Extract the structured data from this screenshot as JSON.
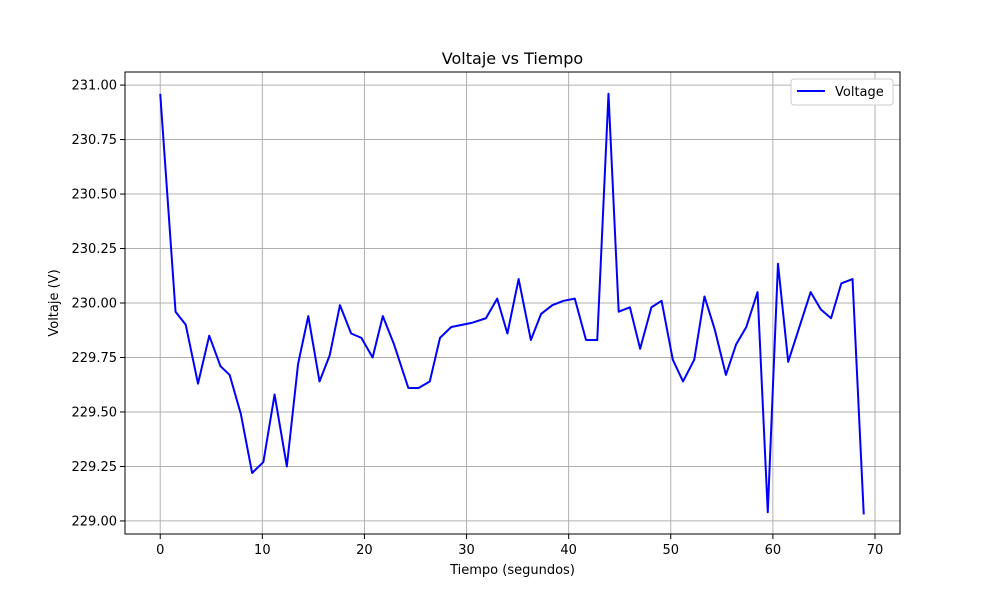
{
  "chart_data": {
    "type": "line",
    "title": "Voltaje vs Tiempo",
    "xlabel": "Tiempo (segundos)",
    "ylabel": "Voltaje (V)",
    "xlim": [
      -3.45,
      72.45
    ],
    "ylim": [
      228.94,
      231.06
    ],
    "xticks": [
      0,
      10,
      20,
      30,
      40,
      50,
      60,
      70
    ],
    "yticks": [
      229.0,
      229.25,
      229.5,
      229.75,
      230.0,
      230.25,
      230.5,
      230.75,
      231.0
    ],
    "ytick_labels": [
      "229.00",
      "229.25",
      "229.50",
      "229.75",
      "230.00",
      "230.25",
      "230.50",
      "230.75",
      "231.00"
    ],
    "grid": true,
    "legend_position": "top-right",
    "series": [
      {
        "name": "Voltage",
        "color": "#0000ff",
        "x": [
          0,
          1.5,
          2.5,
          3.7,
          4.8,
          5.9,
          6.8,
          7.9,
          9.0,
          10.1,
          11.2,
          12.4,
          13.5,
          14.5,
          15.6,
          16.6,
          17.6,
          18.7,
          19.7,
          20.8,
          21.8,
          22.9,
          24.3,
          25.3,
          26.4,
          27.4,
          28.5,
          29.6,
          30.6,
          31.9,
          33.0,
          34.0,
          35.1,
          36.3,
          37.3,
          38.4,
          39.5,
          40.6,
          41.7,
          42.8,
          43.9,
          44.9,
          46.0,
          47.0,
          48.1,
          49.1,
          50.2,
          51.2,
          52.3,
          53.3,
          54.3,
          55.4,
          56.4,
          57.4,
          58.5,
          59.5,
          60.5,
          61.5,
          62.6,
          63.7,
          64.7,
          65.7,
          66.7,
          67.8,
          68.9
        ],
        "y": [
          230.96,
          229.96,
          229.9,
          229.63,
          229.85,
          229.71,
          229.67,
          229.49,
          229.22,
          229.27,
          229.58,
          229.25,
          229.72,
          229.94,
          229.64,
          229.76,
          229.99,
          229.86,
          229.84,
          229.75,
          229.94,
          229.81,
          229.61,
          229.61,
          229.64,
          229.84,
          229.89,
          229.9,
          229.91,
          229.93,
          230.02,
          229.86,
          230.11,
          229.83,
          229.95,
          229.99,
          230.01,
          230.02,
          229.83,
          229.83,
          230.96,
          229.96,
          229.98,
          229.79,
          229.98,
          230.01,
          229.74,
          229.64,
          229.74,
          230.03,
          229.88,
          229.67,
          229.81,
          229.89,
          230.05,
          229.04,
          230.18,
          229.73,
          229.89,
          230.05,
          229.97,
          229.93,
          230.09,
          230.11,
          229.03
        ]
      }
    ]
  }
}
